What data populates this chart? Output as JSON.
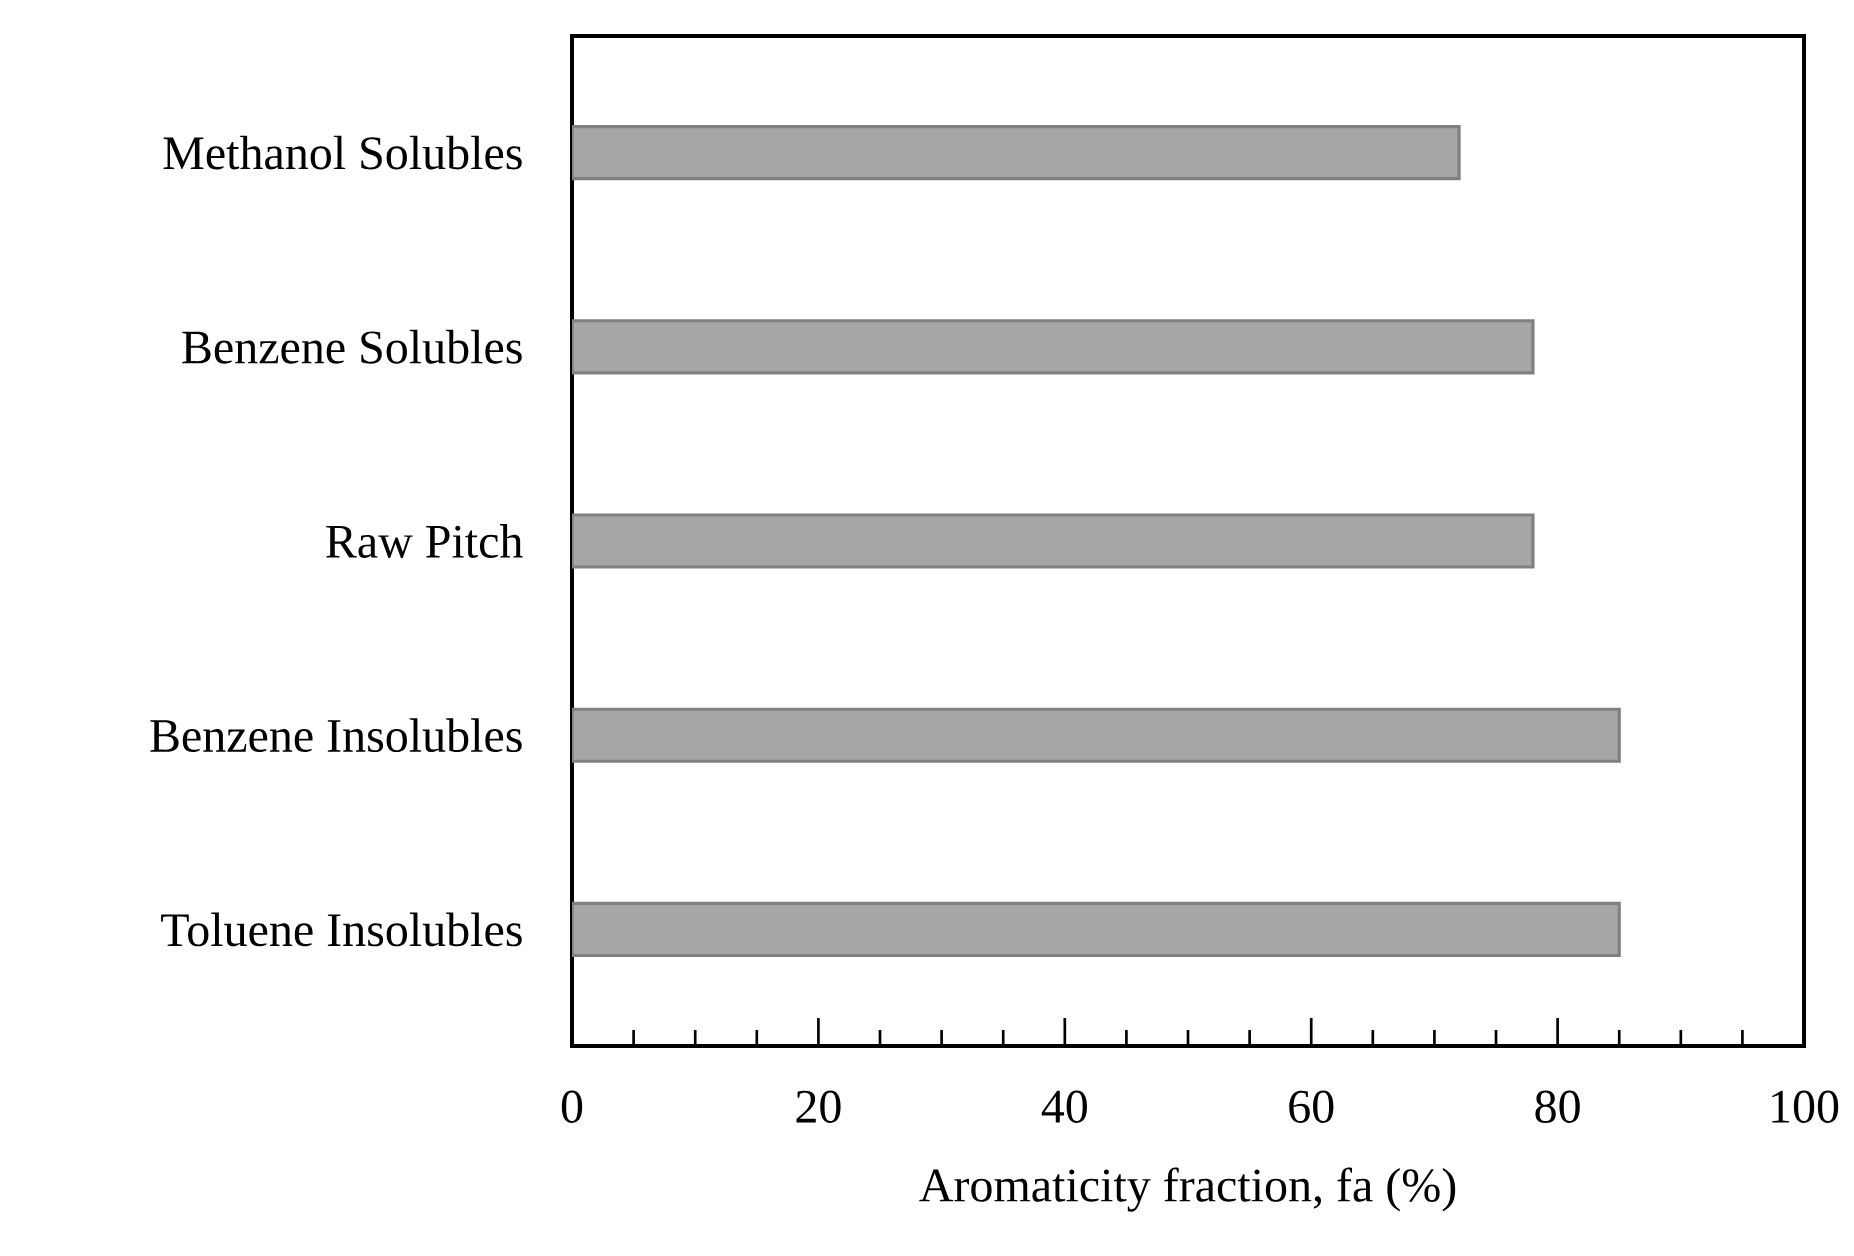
{
  "chart_data": {
    "type": "bar",
    "orientation": "horizontal",
    "xlabel": "Aromaticity fraction, fa (%)",
    "categories": [
      "Methanol Solubles",
      "Benzene Solubles",
      "Raw Pitch",
      "Benzene Insolubles",
      "Toluene Insolubles"
    ],
    "values": [
      72,
      78,
      78,
      85,
      85
    ],
    "color": "#a6a6a6",
    "xlim": [
      0,
      100
    ],
    "xticks": [
      0,
      20,
      40,
      60,
      80,
      100
    ]
  }
}
